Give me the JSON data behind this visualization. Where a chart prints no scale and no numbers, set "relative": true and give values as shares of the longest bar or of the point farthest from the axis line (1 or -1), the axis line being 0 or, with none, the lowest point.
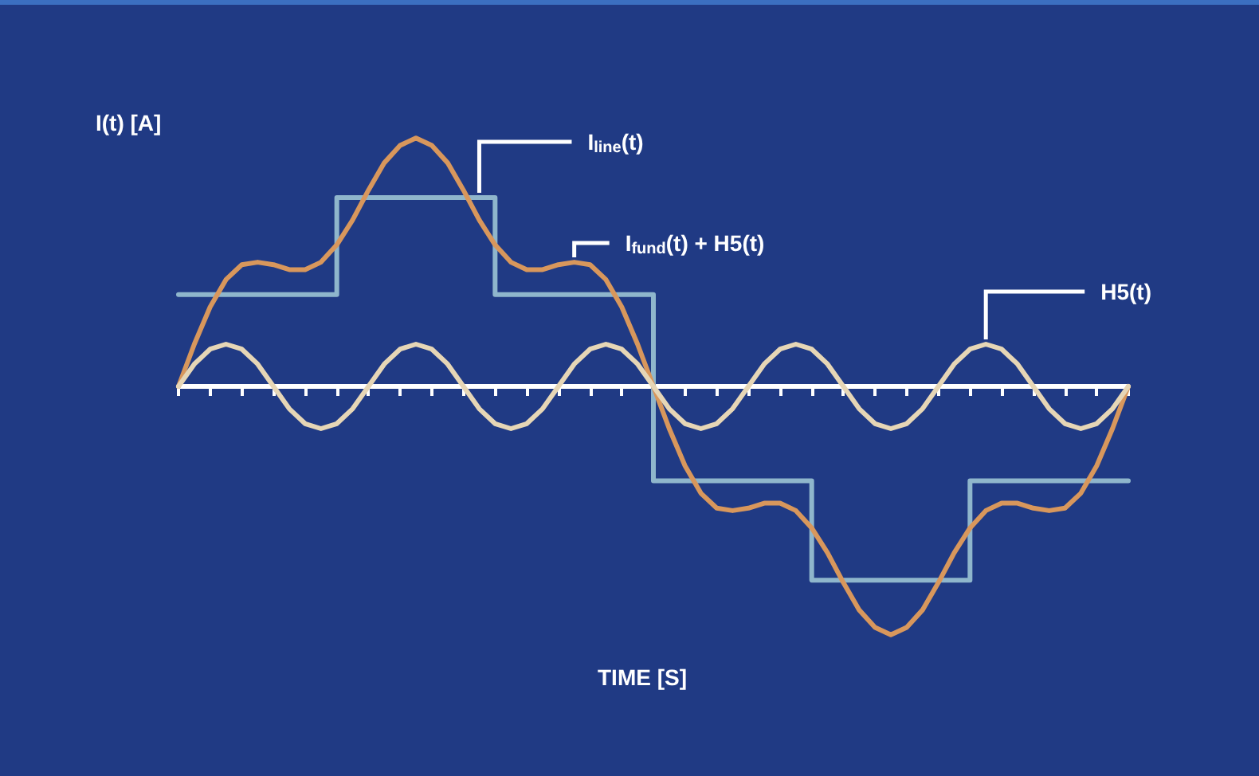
{
  "chart_data": {
    "type": "line",
    "relative": true,
    "xlabel": "TIME [S]",
    "ylabel": "I(t) [A]",
    "marker": "none",
    "categories": [
      null,
      null,
      null,
      null,
      null,
      null,
      null,
      null,
      null,
      null,
      null,
      null,
      null,
      null,
      null,
      null,
      null,
      null,
      null,
      null,
      null,
      null,
      null,
      null,
      null,
      null,
      null,
      null,
      null,
      null,
      null,
      null,
      null,
      null,
      null,
      null,
      null,
      null,
      null,
      null,
      null,
      null,
      null,
      null,
      null,
      null,
      null,
      null,
      null,
      null,
      null,
      null,
      null,
      null,
      null,
      null,
      null,
      null,
      null,
      null,
      null
    ],
    "series": [
      {
        "name": "I$_{line}$(t)",
        "type": "step",
        "color": "#8fb6cc",
        "values": [
          0.37,
          0.37,
          0.37,
          0.37,
          0.37,
          0.37,
          0.37,
          0.37,
          0.37,
          0.37,
          0.76,
          0.76,
          0.76,
          0.76,
          0.76,
          0.76,
          0.76,
          0.76,
          0.76,
          0.76,
          0.37,
          0.37,
          0.37,
          0.37,
          0.37,
          0.37,
          0.37,
          0.37,
          0.37,
          0.37,
          -0.38,
          -0.38,
          -0.38,
          -0.38,
          -0.38,
          -0.38,
          -0.38,
          -0.38,
          -0.38,
          -0.38,
          -0.78,
          -0.78,
          -0.78,
          -0.78,
          -0.78,
          -0.78,
          -0.78,
          -0.78,
          -0.78,
          -0.78,
          -0.38,
          -0.38,
          -0.38,
          -0.38,
          -0.38,
          -0.38,
          -0.38,
          -0.38,
          -0.38,
          -0.38,
          -0.38
        ]
      },
      {
        "name": "I$_{fund}$(t) + H5(t)",
        "color": "#d8975c",
        "values": [
          0,
          0.17,
          0.32,
          0.43,
          0.49,
          0.5,
          0.49,
          0.47,
          0.47,
          0.5,
          0.57,
          0.67,
          0.79,
          0.9,
          0.97,
          1.0,
          0.97,
          0.9,
          0.79,
          0.67,
          0.57,
          0.5,
          0.47,
          0.47,
          0.49,
          0.5,
          0.49,
          0.43,
          0.32,
          0.17,
          0,
          -0.17,
          -0.32,
          -0.43,
          -0.49,
          -0.5,
          -0.49,
          -0.47,
          -0.47,
          -0.5,
          -0.57,
          -0.67,
          -0.79,
          -0.9,
          -0.97,
          -1.0,
          -0.97,
          -0.9,
          -0.79,
          -0.67,
          -0.57,
          -0.5,
          -0.47,
          -0.47,
          -0.49,
          -0.5,
          -0.49,
          -0.43,
          -0.32,
          -0.17,
          0
        ]
      },
      {
        "name": "H5(t)",
        "color": "#e6d6b6",
        "values": [
          0,
          0.09,
          0.15,
          0.17,
          0.15,
          0.09,
          0,
          -0.09,
          -0.15,
          -0.17,
          -0.15,
          -0.09,
          0,
          0.09,
          0.15,
          0.17,
          0.15,
          0.09,
          0,
          -0.09,
          -0.15,
          -0.17,
          -0.15,
          -0.09,
          0,
          0.09,
          0.15,
          0.17,
          0.15,
          0.09,
          0,
          -0.09,
          -0.15,
          -0.17,
          -0.15,
          -0.09,
          0,
          0.09,
          0.15,
          0.17,
          0.15,
          0.09,
          0,
          -0.09,
          -0.15,
          -0.17,
          -0.15,
          -0.09,
          0,
          0.09,
          0.15,
          0.17,
          0.15,
          0.09,
          0,
          -0.09,
          -0.15,
          -0.17,
          -0.15,
          -0.09,
          0
        ]
      }
    ]
  }
}
